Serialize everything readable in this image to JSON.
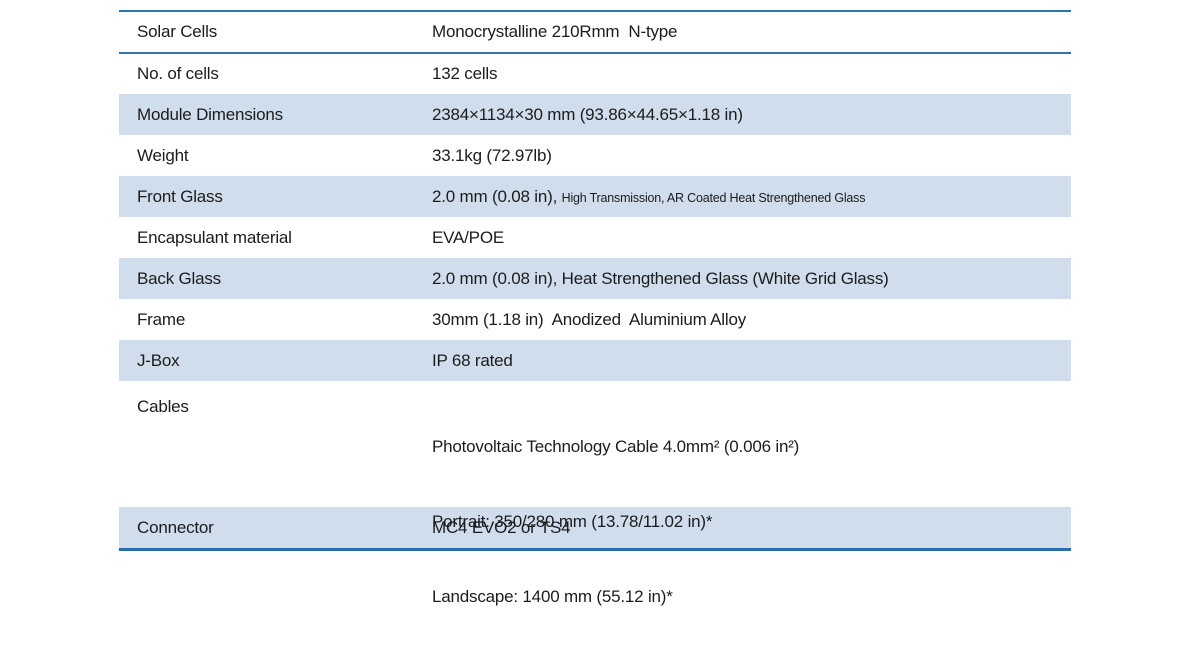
{
  "table": {
    "colors": {
      "stripe": "#cfddec",
      "rule": "#2e74b5",
      "text": "#1c1c1c"
    },
    "rows": [
      {
        "label": "Solar Cells",
        "value": "Monocrystalline 210Rmm  N-type"
      },
      {
        "label": "No. of cells",
        "value": "132 cells"
      },
      {
        "label": "Module Dimensions",
        "value": "2384×1134×30 mm (93.86×44.65×1.18 in)"
      },
      {
        "label": "Weight",
        "value": "33.1kg (72.97lb)"
      },
      {
        "label": "Front Glass",
        "value_main": "2.0 mm (0.08 in), ",
        "value_small": "High Transmission, AR Coated Heat Strengthened Glass"
      },
      {
        "label": "Encapsulant material",
        "value": "EVA/POE"
      },
      {
        "label": "Back Glass",
        "value": "2.0 mm (0.08 in), Heat Strengthened Glass (White Grid Glass)"
      },
      {
        "label": "Frame",
        "value": "30mm (1.18 in)  Anodized  Aluminium Alloy"
      },
      {
        "label": "J-Box",
        "value": "IP 68 rated"
      },
      {
        "label": "Cables",
        "lines": [
          "Photovoltaic Technology Cable 4.0mm² (0.006 in²)",
          "Portrait: 350/280 mm (13.78/11.02 in)*",
          "Landscape: 1400 mm (55.12 in)*"
        ]
      },
      {
        "label": "Connector",
        "value": "MC4 EVO2 or TS4"
      }
    ]
  }
}
